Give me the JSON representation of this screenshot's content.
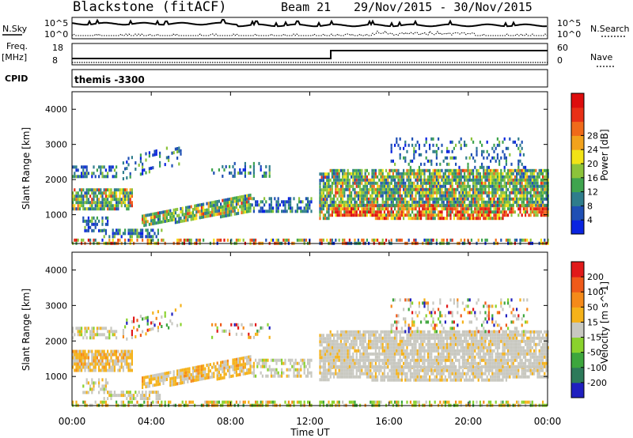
{
  "header": {
    "site": "Blackstone (fitACF)",
    "beam": "Beam 21",
    "date_range": "29/Nov/2015 - 30/Nov/2015"
  },
  "strip_labels": {
    "nsky": "N.Sky",
    "nsearch": "N.Search",
    "freq": "Freq.",
    "mhz": "[MHz]",
    "nave": "Nave",
    "cpid": "CPID",
    "cpid_value": "themis -3300"
  },
  "noise_axis": {
    "top": "10^5",
    "bottom": "10^0",
    "right_top": "10^5",
    "right_bottom": "10^0"
  },
  "freq_axis": {
    "top": "18",
    "bottom": "8",
    "right_top": "60",
    "right_bottom": "0"
  },
  "chart_data": [
    {
      "type": "heatmap",
      "panel": "power",
      "ylabel": "Slant Range [km]",
      "ylim": [
        180,
        4500
      ],
      "yticks": [
        "1000",
        "2000",
        "3000",
        "4000"
      ],
      "colorbar_label": "Power [dB]",
      "colorbar_ticks": [
        "4",
        "8",
        "12",
        "16",
        "20",
        "24",
        "28"
      ],
      "colorbar_colors": [
        "#0a24e0",
        "#1f4fb4",
        "#2f7d8c",
        "#3fa44e",
        "#8cc33a",
        "#f2e316",
        "#f2a21c",
        "#f06a1a",
        "#e83016",
        "#dd0d0d"
      ]
    },
    {
      "type": "heatmap",
      "panel": "velocity",
      "ylabel": "Slant Range [km]",
      "ylim": [
        180,
        4500
      ],
      "yticks": [
        "1000",
        "2000",
        "3000",
        "4000"
      ],
      "colorbar_label": "Velocity [m s^-1]",
      "colorbar_ticks": [
        "200",
        "100",
        "50",
        "15",
        "-15",
        "-50",
        "-100",
        "-200"
      ],
      "colorbar_colors": [
        "#1f1fbf",
        "#2d7a5a",
        "#3da63d",
        "#8ad22d",
        "#c8c8c0",
        "#f5b21a",
        "#f58a1a",
        "#ef5a1a",
        "#e11a1a"
      ]
    }
  ],
  "x_axis": {
    "ticks": [
      "00:00",
      "04:00",
      "08:00",
      "12:00",
      "16:00",
      "20:00",
      "00:00"
    ],
    "label": "Time UT"
  }
}
